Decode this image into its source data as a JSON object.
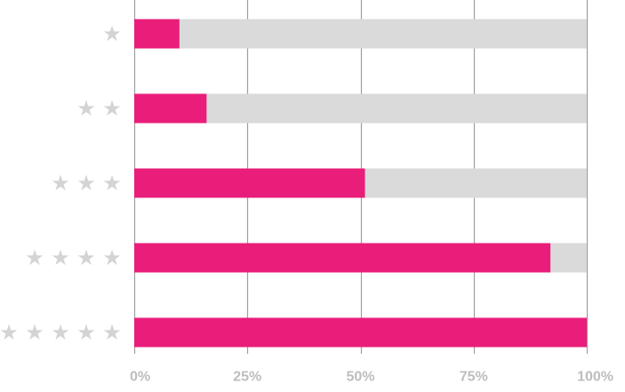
{
  "chart_data": {
    "type": "bar",
    "orientation": "horizontal",
    "stacked": true,
    "title": "",
    "xlabel": "",
    "ylabel": "",
    "categories": [
      "★",
      "★ ★",
      "★ ★ ★",
      "★ ★ ★ ★",
      "★ ★ ★ ★ ★"
    ],
    "category_star_counts": [
      1,
      2,
      3,
      4,
      5
    ],
    "category_icon": "star-icon",
    "series": [
      {
        "color": "#e91e7a",
        "values": [
          10,
          16,
          51,
          92,
          100
        ]
      },
      {
        "color": "#dadada",
        "values": [
          90,
          84,
          49,
          8,
          0
        ]
      }
    ],
    "xlim": [
      0,
      100
    ],
    "xticks": [
      0,
      25,
      50,
      75,
      100
    ],
    "xtick_labels": [
      "0%",
      "25%",
      "50%",
      "75%",
      "100%"
    ],
    "grid": "vertical",
    "legend": "none",
    "colors": {
      "grid": "#9e9e9e",
      "tick_label": "#bdbdbd",
      "star": "#d4d4d4"
    }
  }
}
